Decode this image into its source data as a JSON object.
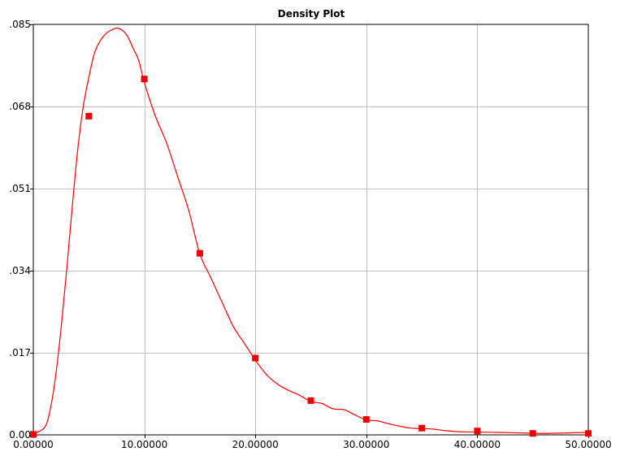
{
  "chart_data": {
    "type": "line",
    "title": "Density Plot",
    "xlabel": "",
    "ylabel": "",
    "xlim": [
      0,
      50
    ],
    "ylim": [
      0,
      0.085
    ],
    "grid": true,
    "legend": "none",
    "x_ticks": [
      0,
      10,
      20,
      30,
      40,
      50
    ],
    "x_tick_labels": [
      "0.00000",
      "10.00000",
      "20.00000",
      "30.00000",
      "40.00000",
      "50.00000"
    ],
    "y_ticks": [
      0,
      0.017,
      0.034,
      0.051,
      0.068,
      0.085
    ],
    "y_tick_labels": [
      "0.00",
      ".017",
      ".034",
      ".051",
      ".068",
      ".085"
    ],
    "colors": {
      "curve": "#ff0000",
      "marker": "#ee0000",
      "grid": "#c0c0c0",
      "axis": "#000000"
    },
    "series": [
      {
        "style": "curve",
        "x": [
          0,
          1,
          1.5,
          2,
          2.5,
          3,
          3.5,
          4,
          4.5,
          5,
          5.5,
          6,
          6.5,
          7,
          7.5,
          8,
          8.5,
          9,
          9.5,
          10,
          11,
          12,
          13,
          14,
          15,
          16,
          17,
          18,
          19,
          20,
          21,
          22,
          23,
          24,
          25,
          26,
          27,
          28,
          29,
          30,
          31,
          32,
          33,
          34,
          35,
          36,
          37,
          38,
          39,
          40,
          42,
          44,
          46,
          48,
          50
        ],
        "y": [
          0.0002,
          0.0015,
          0.005,
          0.012,
          0.022,
          0.034,
          0.047,
          0.059,
          0.068,
          0.074,
          0.079,
          0.0815,
          0.083,
          0.0838,
          0.0842,
          0.0838,
          0.0825,
          0.08,
          0.0775,
          0.073,
          0.066,
          0.0605,
          0.0535,
          0.0465,
          0.0375,
          0.0325,
          0.0275,
          0.0225,
          0.019,
          0.0155,
          0.0125,
          0.0105,
          0.0092,
          0.0082,
          0.0069,
          0.0065,
          0.0054,
          0.0052,
          0.0041,
          0.0031,
          0.0029,
          0.0023,
          0.0018,
          0.0014,
          0.0013,
          0.0012,
          0.0009,
          0.0007,
          0.0006,
          0.0006,
          0.0005,
          0.0004,
          0.0003,
          0.0004,
          0.0005
        ]
      },
      {
        "style": "markers",
        "x": [
          0,
          5,
          10,
          15,
          20,
          25,
          30,
          35,
          40,
          45,
          50
        ],
        "y": [
          0.0001,
          0.066,
          0.0737,
          0.0376,
          0.0159,
          0.0071,
          0.0032,
          0.0014,
          0.0008,
          0.0003,
          0.0003
        ]
      }
    ]
  }
}
